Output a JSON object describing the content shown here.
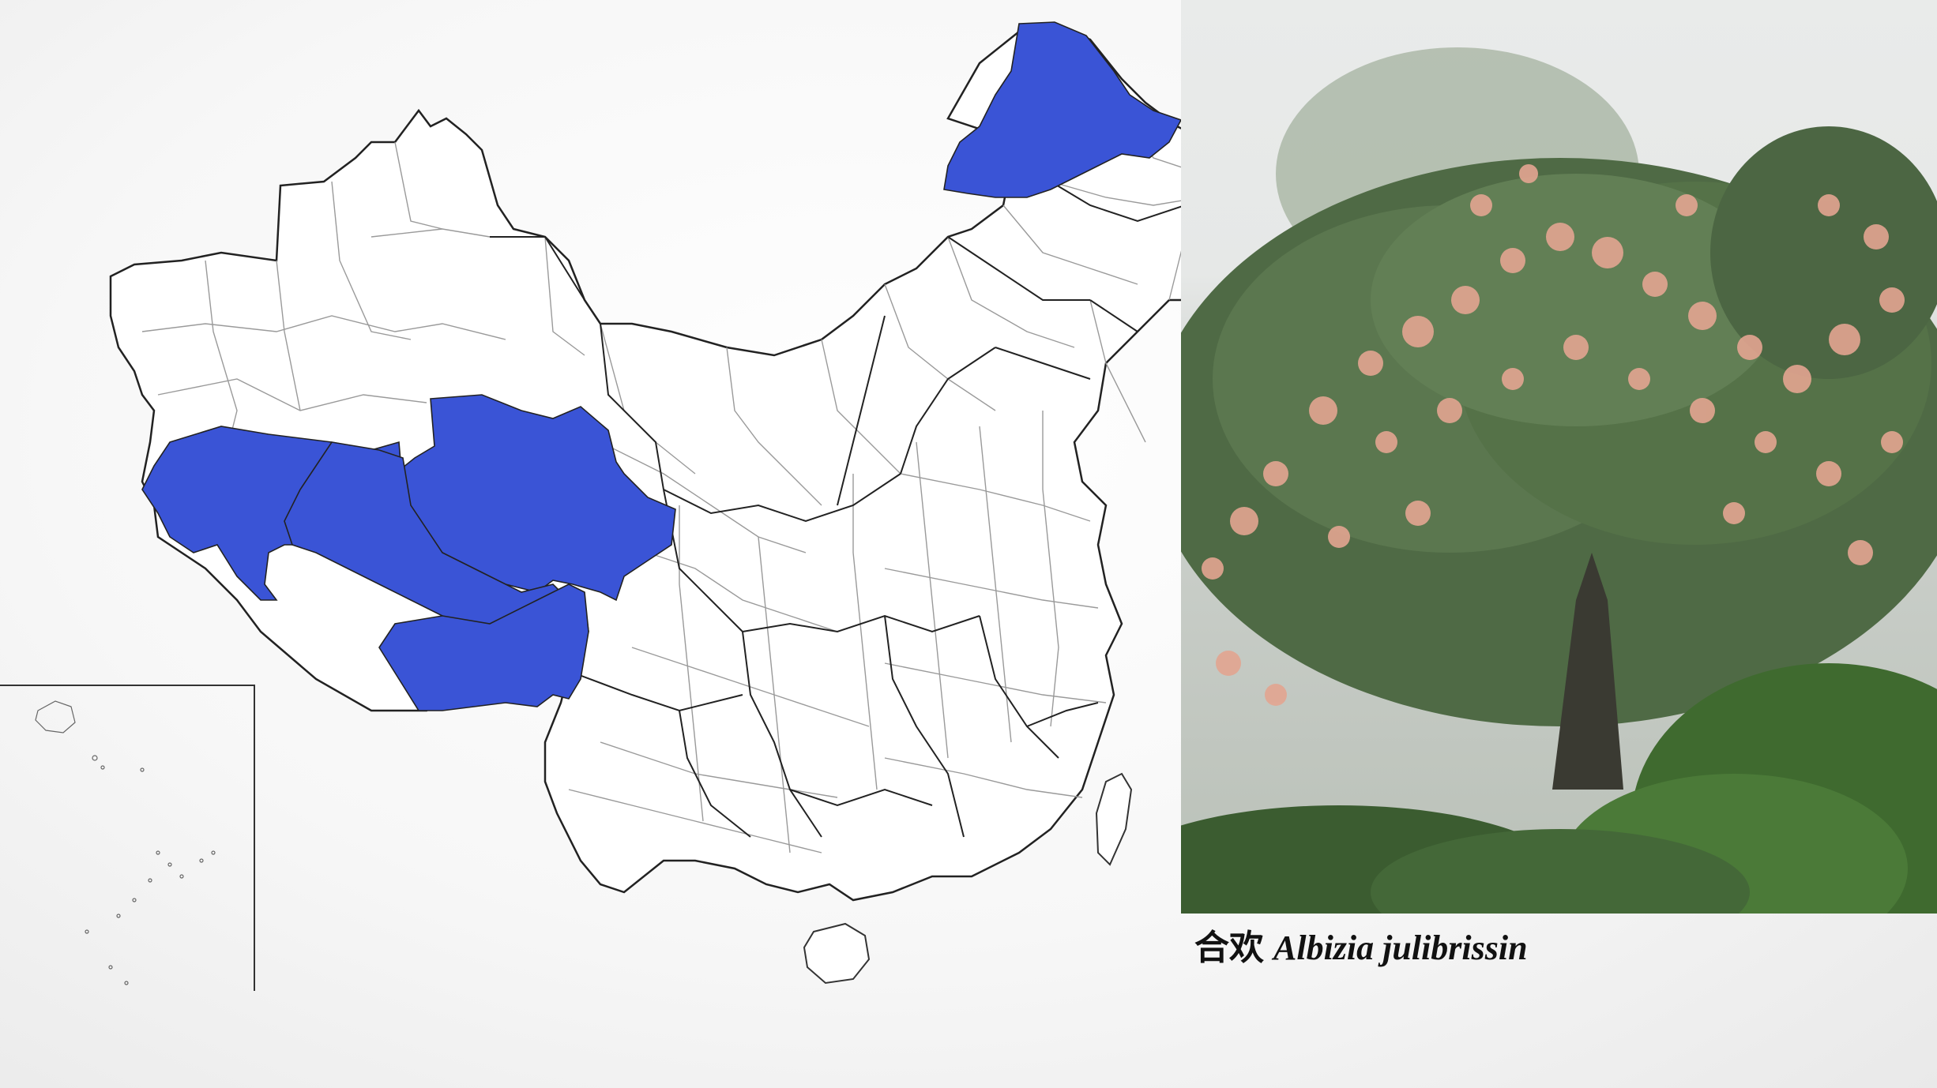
{
  "colors": {
    "highlight_region": "#3a54d6",
    "province_border": "#222222",
    "prefecture_border": "#9a9a9a",
    "background": "#f4f4f4"
  },
  "map": {
    "highlighted_regions": [
      "north-hulunbuir-daxinganling",
      "southern-xinjiang",
      "qinghai",
      "tibet-northern",
      "tibet-eastern"
    ]
  },
  "photo": {
    "subject": "flowering-tree"
  },
  "caption": {
    "chinese_name": "合欢",
    "scientific_name": "Albizia julibrissin"
  }
}
